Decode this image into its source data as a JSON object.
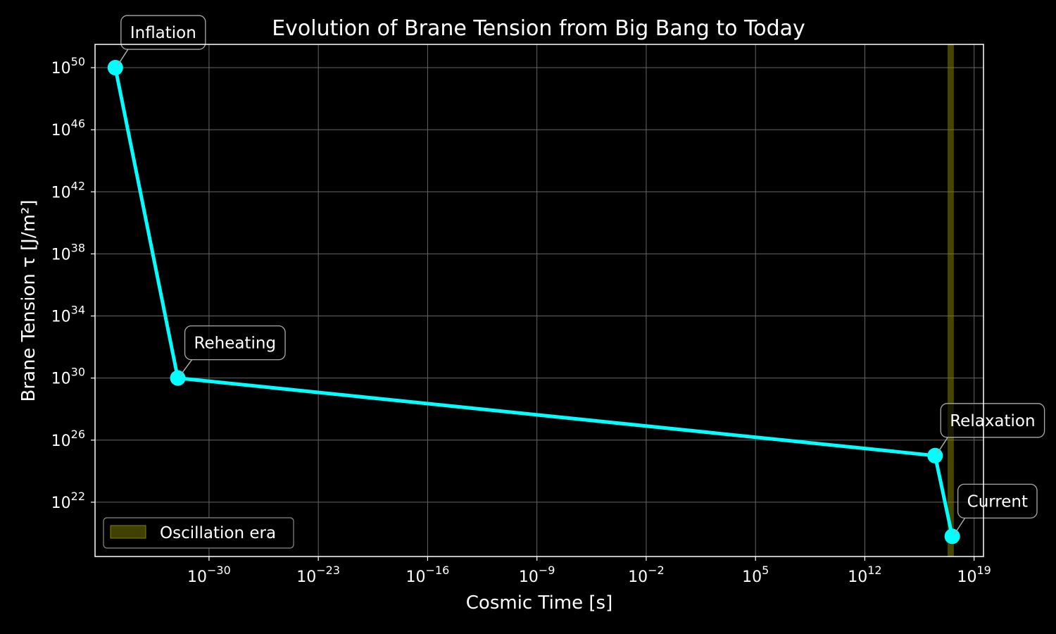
{
  "chart_data": {
    "type": "line",
    "title": "Evolution of Brane Tension from Big Bang to Today",
    "xlabel": "Cosmic Time [s]",
    "ylabel": "Brane Tension τ [J/m²]",
    "xscale": "log",
    "yscale": "log",
    "xlim_exp": [
      -37.3,
      19.6
    ],
    "ylim_exp": [
      18.5,
      51.5
    ],
    "x_ticks": [
      {
        "base": "10",
        "exp": "−30",
        "value_exp": -30
      },
      {
        "base": "10",
        "exp": "−23",
        "value_exp": -23
      },
      {
        "base": "10",
        "exp": "−16",
        "value_exp": -16
      },
      {
        "base": "10",
        "exp": "−9",
        "value_exp": -9
      },
      {
        "base": "10",
        "exp": "−2",
        "value_exp": -2
      },
      {
        "base": "10",
        "exp": "5",
        "value_exp": 5
      },
      {
        "base": "10",
        "exp": "12",
        "value_exp": 12
      },
      {
        "base": "10",
        "exp": "19",
        "value_exp": 19
      }
    ],
    "y_ticks": [
      {
        "base": "10",
        "exp": "22",
        "value_exp": 22
      },
      {
        "base": "10",
        "exp": "26",
        "value_exp": 26
      },
      {
        "base": "10",
        "exp": "30",
        "value_exp": 30
      },
      {
        "base": "10",
        "exp": "34",
        "value_exp": 34
      },
      {
        "base": "10",
        "exp": "38",
        "value_exp": 38
      },
      {
        "base": "10",
        "exp": "42",
        "value_exp": 42
      },
      {
        "base": "10",
        "exp": "46",
        "value_exp": 46
      },
      {
        "base": "10",
        "exp": "50",
        "value_exp": 50
      }
    ],
    "series": [
      {
        "color": "#00FFFF",
        "points": [
          {
            "x_exp": -36,
            "y_exp": 50
          },
          {
            "x_exp": -32,
            "y_exp": 30
          },
          {
            "x_exp": 16.5,
            "y_exp": 25
          },
          {
            "x_exp": 17.6,
            "y_exp": 19.8
          }
        ]
      }
    ],
    "annotations": [
      {
        "text": "Inflation",
        "point_index": 0
      },
      {
        "text": "Reheating",
        "point_index": 1
      },
      {
        "text": "Relaxation",
        "point_index": 2
      },
      {
        "text": "Current",
        "point_index": 3
      }
    ],
    "shaded_region": {
      "label": "Oscillation era",
      "x_exp_from": 17.3,
      "x_exp_to": 17.7,
      "color": "#808000"
    },
    "grid": true,
    "legend_position": "lower-left",
    "colors": {
      "background": "#000000",
      "line": "#00FFFF",
      "grid": "#555555",
      "band": "#808000"
    }
  }
}
